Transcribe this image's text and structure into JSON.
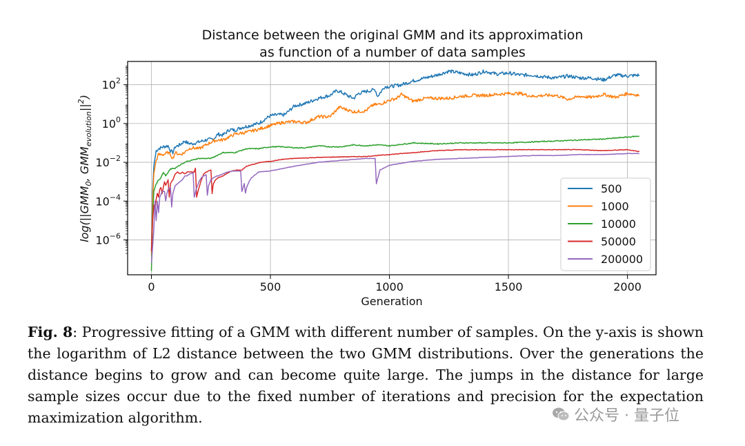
{
  "chart_data": {
    "type": "line",
    "title_lines": [
      "Distance between the original GMM and its approximation",
      "as function of a number of data samples"
    ],
    "xlabel": "Generation",
    "ylabel": "log(||GMM₀, GMMevolution||²)",
    "ylabel_parts": {
      "pre": "log(||GMM",
      "sub0": "0",
      "mid": ", GMM",
      "sub1": "evolution",
      "post": "||",
      "sup": "2",
      "end": ")"
    },
    "yscale": "log",
    "xlim": [
      -100,
      2120
    ],
    "ylim_log10": [
      -7.8,
      3.2
    ],
    "xticks": [
      0,
      500,
      1000,
      1500,
      2000
    ],
    "xtick_labels": [
      "0",
      "500",
      "1000",
      "1500",
      "2000"
    ],
    "yticks_log10": [
      2,
      0,
      -2,
      -4,
      -6
    ],
    "ytick_labels": [
      {
        "base": "10",
        "exp": "2"
      },
      {
        "base": "10",
        "exp": "0"
      },
      {
        "base": "10",
        "exp": "−2"
      },
      {
        "base": "10",
        "exp": "−4"
      },
      {
        "base": "10",
        "exp": "−6"
      }
    ],
    "grid": true,
    "legend_position": "lower-right",
    "series": [
      {
        "name": "500",
        "color": "#1f77b4",
        "x": [
          0,
          5,
          10,
          20,
          30,
          50,
          70,
          80,
          90,
          100,
          120,
          140,
          150,
          170,
          200,
          230,
          260,
          280,
          300,
          330,
          350,
          380,
          400,
          430,
          450,
          480,
          500,
          530,
          560,
          600,
          650,
          700,
          750,
          780,
          800,
          830,
          850,
          870,
          900,
          940,
          950,
          980,
          1000,
          1050,
          1100,
          1150,
          1200,
          1250,
          1300,
          1350,
          1400,
          1450,
          1500,
          1550,
          1600,
          1650,
          1700,
          1750,
          1800,
          1850,
          1900,
          1950,
          2000,
          2050
        ],
        "log10": [
          -6.5,
          -3.5,
          -2.2,
          -1.4,
          -1.3,
          -1.2,
          -1.15,
          -1.4,
          -1.5,
          -1.2,
          -1.1,
          -0.9,
          -1.0,
          -1.05,
          -0.95,
          -0.85,
          -0.8,
          -0.55,
          -0.6,
          -0.3,
          -0.35,
          -0.2,
          -0.15,
          -0.05,
          0.0,
          0.25,
          0.4,
          0.45,
          0.45,
          0.9,
          1.05,
          1.3,
          1.45,
          1.7,
          1.6,
          1.4,
          1.3,
          1.55,
          1.65,
          1.75,
          1.4,
          1.9,
          1.9,
          2.0,
          2.2,
          2.35,
          2.5,
          2.7,
          2.6,
          2.5,
          2.7,
          2.55,
          2.6,
          2.5,
          2.5,
          2.4,
          2.35,
          2.45,
          2.35,
          2.35,
          2.25,
          2.5,
          2.45,
          2.5
        ]
      },
      {
        "name": "1000",
        "color": "#ff7f0e",
        "x": [
          0,
          5,
          10,
          20,
          30,
          50,
          70,
          80,
          90,
          100,
          120,
          140,
          150,
          170,
          200,
          230,
          260,
          280,
          300,
          350,
          400,
          450,
          500,
          550,
          600,
          650,
          700,
          750,
          790,
          800,
          850,
          900,
          930,
          960,
          1000,
          1030,
          1050,
          1100,
          1150,
          1200,
          1250,
          1300,
          1350,
          1400,
          1450,
          1500,
          1550,
          1600,
          1650,
          1700,
          1750,
          1800,
          1850,
          1900,
          1950,
          2000,
          2050
        ],
        "log10": [
          -6.8,
          -4.0,
          -2.6,
          -1.9,
          -1.6,
          -1.6,
          -1.5,
          -1.6,
          -1.8,
          -1.5,
          -1.6,
          -1.5,
          -1.35,
          -1.25,
          -1.3,
          -1.1,
          -0.9,
          -0.85,
          -0.85,
          -0.55,
          -0.45,
          -0.3,
          -0.1,
          0.05,
          0.1,
          0.05,
          0.35,
          0.35,
          0.85,
          0.8,
          0.6,
          0.65,
          0.95,
          1.0,
          1.2,
          1.3,
          1.5,
          1.15,
          1.3,
          1.3,
          1.3,
          1.4,
          1.45,
          1.45,
          1.5,
          1.55,
          1.55,
          1.4,
          1.45,
          1.45,
          1.25,
          1.4,
          1.35,
          1.5,
          1.35,
          1.55,
          1.45
        ]
      },
      {
        "name": "10000",
        "color": "#2ca02c",
        "x": [
          0,
          5,
          10,
          20,
          30,
          40,
          50,
          60,
          80,
          100,
          120,
          150,
          200,
          250,
          300,
          350,
          400,
          450,
          500,
          550,
          600,
          650,
          700,
          750,
          800,
          850,
          900,
          950,
          1000,
          1100,
          1200,
          1300,
          1400,
          1500,
          1600,
          1700,
          1800,
          1900,
          2000,
          2050
        ],
        "log10": [
          -7.6,
          -4.8,
          -3.5,
          -3.1,
          -2.9,
          -2.8,
          -2.5,
          -2.7,
          -2.35,
          -2.3,
          -2.15,
          -1.95,
          -1.8,
          -1.8,
          -1.5,
          -1.5,
          -1.3,
          -1.3,
          -1.2,
          -1.2,
          -1.25,
          -1.25,
          -1.15,
          -1.2,
          -1.2,
          -1.1,
          -1.15,
          -1.1,
          -1.15,
          -1.0,
          -1.05,
          -1.0,
          -1.0,
          -1.0,
          -0.95,
          -0.9,
          -0.85,
          -0.8,
          -0.7,
          -0.65
        ]
      },
      {
        "name": "50000",
        "color": "#d62728",
        "x": [
          0,
          5,
          10,
          15,
          20,
          25,
          30,
          35,
          40,
          45,
          55,
          60,
          70,
          75,
          80,
          90,
          100,
          110,
          120,
          130,
          140,
          150,
          160,
          170,
          180,
          185,
          190,
          200,
          210,
          220,
          230,
          240,
          250,
          255,
          260,
          270,
          280,
          300,
          320,
          340,
          360,
          380,
          400,
          430,
          460,
          500,
          550,
          600,
          700,
          800,
          900,
          1000,
          1100,
          1200,
          1300,
          1400,
          1500,
          1600,
          1700,
          1800,
          1900,
          2000,
          2050
        ],
        "log10": [
          -6.6,
          -5.0,
          -4.2,
          -4.5,
          -3.9,
          -3.6,
          -3.8,
          -3.4,
          -3.3,
          -3.6,
          -3.0,
          -3.2,
          -2.9,
          -3.8,
          -3.1,
          -2.9,
          -2.6,
          -2.5,
          -2.6,
          -2.5,
          -2.6,
          -2.5,
          -2.5,
          -2.5,
          -2.5,
          -2.3,
          -3.8,
          -3.3,
          -2.9,
          -2.6,
          -2.5,
          -2.45,
          -2.4,
          -3.6,
          -3.1,
          -2.9,
          -2.8,
          -2.7,
          -2.55,
          -2.45,
          -2.4,
          -2.4,
          -2.2,
          -2.1,
          -2.0,
          -1.95,
          -1.85,
          -1.8,
          -1.75,
          -1.72,
          -1.7,
          -1.6,
          -1.5,
          -1.4,
          -1.35,
          -1.35,
          -1.35,
          -1.35,
          -1.35,
          -1.35,
          -1.4,
          -1.35,
          -1.45
        ]
      },
      {
        "name": "200000",
        "color": "#9467bd",
        "x": [
          0,
          10,
          15,
          20,
          25,
          30,
          35,
          45,
          55,
          60,
          65,
          70,
          80,
          85,
          90,
          100,
          110,
          120,
          130,
          140,
          150,
          160,
          175,
          180,
          190,
          200,
          210,
          220,
          230,
          235,
          240,
          250,
          260,
          275,
          280,
          290,
          300,
          320,
          340,
          360,
          375,
          380,
          390,
          395,
          400,
          410,
          420,
          430,
          450,
          500,
          600,
          700,
          800,
          900,
          930,
          940,
          945,
          960,
          1000,
          1100,
          1200,
          1300,
          1400,
          1500,
          1600,
          1700,
          1800,
          1900,
          2000,
          2050
        ],
        "log10": [
          -7.2,
          -5.5,
          -4.0,
          -5.0,
          -4.0,
          -4.6,
          -3.8,
          -3.5,
          -3.5,
          -4.0,
          -3.6,
          -3.4,
          -3.3,
          -4.3,
          -3.6,
          -3.2,
          -3.1,
          -3.0,
          -2.9,
          -2.7,
          -2.7,
          -2.6,
          -2.55,
          -3.8,
          -3.3,
          -3.0,
          -2.8,
          -2.7,
          -2.65,
          -3.7,
          -3.2,
          -2.9,
          -2.8,
          -2.7,
          -2.7,
          -2.65,
          -2.6,
          -2.5,
          -2.45,
          -2.45,
          -2.45,
          -3.5,
          -3.1,
          -3.6,
          -3.3,
          -3.0,
          -2.8,
          -2.7,
          -2.5,
          -2.45,
          -2.2,
          -2.0,
          -1.9,
          -1.8,
          -1.8,
          -1.8,
          -3.1,
          -2.4,
          -2.15,
          -1.95,
          -1.85,
          -1.8,
          -1.75,
          -1.7,
          -1.65,
          -1.65,
          -1.6,
          -1.6,
          -1.55,
          -1.55
        ]
      }
    ]
  },
  "caption": {
    "label": "Fig. 8",
    "text": ": Progressive fitting of a GMM with different number of samples. On the y-axis is shown the logarithm of L2 distance between the two GMM distributions. Over the generations the distance begins to grow and can become quite large. The jumps in the distance for large sample sizes occur due to the fixed number of iterations and precision for the expectation maximization algorithm."
  },
  "watermark": {
    "text": "公众号 · 量子位",
    "icon": "wechat-icon"
  }
}
